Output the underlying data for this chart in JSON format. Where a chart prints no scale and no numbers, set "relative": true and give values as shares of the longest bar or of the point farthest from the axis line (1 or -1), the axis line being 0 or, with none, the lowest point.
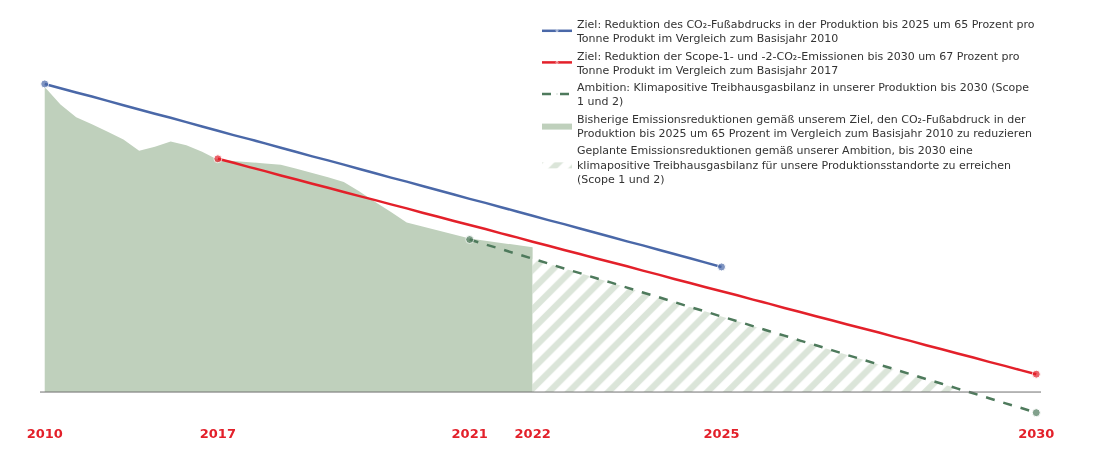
{
  "chart_data": {
    "type": "line",
    "relative": true,
    "legend": "top right",
    "categories": [
      "2010",
      null,
      null,
      null,
      null,
      null,
      null,
      null,
      null,
      null,
      null,
      "2017",
      null,
      null,
      null,
      null,
      null,
      null,
      null,
      null,
      null,
      null,
      null,
      null,
      null,
      null,
      null,
      "2021",
      null,
      null,
      null,
      "2022",
      null,
      null,
      null,
      null,
      null,
      null,
      null,
      null,
      null,
      null,
      null,
      "2025",
      null,
      null,
      null,
      null,
      null,
      null,
      null,
      null,
      null,
      null,
      null,
      null,
      null,
      null,
      null,
      null,
      null,
      null,
      null,
      "2030"
    ],
    "series": [
      {
        "name": "Ziel: Reduktion des CO₂-Fußabdrucks in der Produktion bis 2025 um 65 Prozent pro Tonne Produkt im Vergleich zum Basisjahr 2010",
        "line_style": "solid",
        "color": "#4a68a8",
        "values": [
          1.0,
          0.986,
          0.972,
          0.959,
          0.945,
          0.931,
          0.917,
          0.903,
          0.89,
          0.876,
          0.862,
          0.848,
          0.834,
          0.821,
          0.807,
          0.793,
          0.779,
          0.765,
          0.752,
          0.738,
          0.724,
          0.71,
          0.696,
          0.683,
          0.669,
          0.655,
          0.641,
          0.627,
          0.614,
          0.6,
          0.586,
          0.572,
          0.558,
          0.545,
          0.531,
          0.517,
          0.503,
          0.489,
          0.476,
          0.462,
          0.448,
          0.434,
          0.42,
          0.406,
          null,
          null,
          null,
          null,
          null,
          null,
          null,
          null,
          null,
          null,
          null,
          null,
          null,
          null,
          null,
          null,
          null,
          null,
          null,
          null
        ]
      },
      {
        "name": "Ziel: Reduktion der Scope-1- und -2-CO₂-Emissionen bis 2030 um 67 Prozent pro Tonne Produkt im Vergleich zum Basisjahr 2017",
        "line_style": "solid",
        "color": "#e3202a",
        "values": [
          null,
          null,
          null,
          null,
          null,
          null,
          null,
          null,
          null,
          null,
          null,
          0.757,
          0.744,
          0.73,
          0.717,
          0.703,
          0.69,
          0.676,
          0.663,
          0.649,
          0.636,
          0.623,
          0.609,
          0.596,
          0.582,
          0.569,
          0.555,
          0.542,
          0.529,
          0.515,
          0.502,
          0.488,
          0.475,
          0.461,
          0.448,
          0.434,
          0.421,
          0.408,
          0.394,
          0.381,
          0.367,
          0.354,
          0.34,
          0.327,
          0.314,
          0.3,
          0.287,
          0.273,
          0.26,
          0.246,
          0.233,
          0.219,
          0.206,
          0.193,
          0.179,
          0.166,
          0.152,
          0.139,
          0.125,
          0.112,
          0.098,
          0.085,
          0.071,
          0.058
        ]
      },
      {
        "name": "Ambition: Klimapositive Treibhausgasbilanz in unserer Produktion bis 2030 (Scope 1 und 2)",
        "line_style": "dashed",
        "color": "#4e7a5c",
        "values": [
          null,
          null,
          null,
          null,
          null,
          null,
          null,
          null,
          null,
          null,
          null,
          null,
          null,
          null,
          null,
          null,
          null,
          null,
          null,
          null,
          null,
          null,
          null,
          null,
          null,
          null,
          null,
          0.495,
          0.479,
          0.464,
          0.448,
          0.433,
          0.417,
          0.401,
          0.386,
          0.37,
          0.355,
          0.339,
          0.323,
          0.308,
          0.292,
          0.276,
          0.261,
          0.245,
          0.23,
          0.214,
          0.198,
          0.183,
          0.167,
          0.152,
          0.136,
          0.12,
          0.105,
          0.089,
          0.074,
          0.058,
          0.042,
          0.027,
          0.011,
          -0.004,
          -0.02,
          -0.036,
          -0.051,
          -0.067
        ]
      },
      {
        "name": "Bisherige Emissionsreduktionen gemäß unserem Ziel, den CO₂-Fußabdruck in der Produktion bis 2025 um 65 Prozent im Vergleich zum Basisjahr 2010 zu reduzieren",
        "type": "area",
        "color": "#bfd0bc",
        "values": [
          0.99,
          0.933,
          0.892,
          0.869,
          0.845,
          0.82,
          0.783,
          0.796,
          0.813,
          0.801,
          0.78,
          0.754,
          0.75,
          0.746,
          0.742,
          0.738,
          0.725,
          0.711,
          0.697,
          0.682,
          0.651,
          0.617,
          0.584,
          0.55,
          0.537,
          0.524,
          0.511,
          0.498,
          0.491,
          0.484,
          0.477,
          0.47,
          null,
          null,
          null,
          null,
          null,
          null,
          null,
          null,
          null,
          null,
          null,
          null,
          null,
          null,
          null,
          null,
          null,
          null,
          null,
          null,
          null,
          null,
          null,
          null,
          null,
          null,
          null,
          null,
          null,
          null,
          null,
          null
        ]
      },
      {
        "name": "Geplante Emissionsreduktionen gemäß unserer Ambition, bis 2030 eine klimapositive Treibhausgasbilanz für unsere Produktionsstandorte zu erreichen (Scope 1 und 2)",
        "type": "area",
        "color": "#dbe5d9",
        "values": [
          null,
          null,
          null,
          null,
          null,
          null,
          null,
          null,
          null,
          null,
          null,
          null,
          null,
          null,
          null,
          null,
          null,
          null,
          null,
          null,
          null,
          null,
          null,
          null,
          null,
          null,
          null,
          null,
          null,
          null,
          null,
          0.433,
          0.417,
          0.401,
          0.386,
          0.37,
          0.355,
          0.339,
          0.323,
          0.308,
          0.292,
          0.276,
          0.261,
          0.245,
          0.23,
          0.214,
          0.198,
          0.183,
          0.167,
          0.152,
          0.136,
          0.12,
          0.105,
          0.089,
          0.074,
          0.058,
          0.042,
          0.027,
          0.011,
          null,
          null,
          null,
          null,
          null
        ]
      }
    ]
  }
}
